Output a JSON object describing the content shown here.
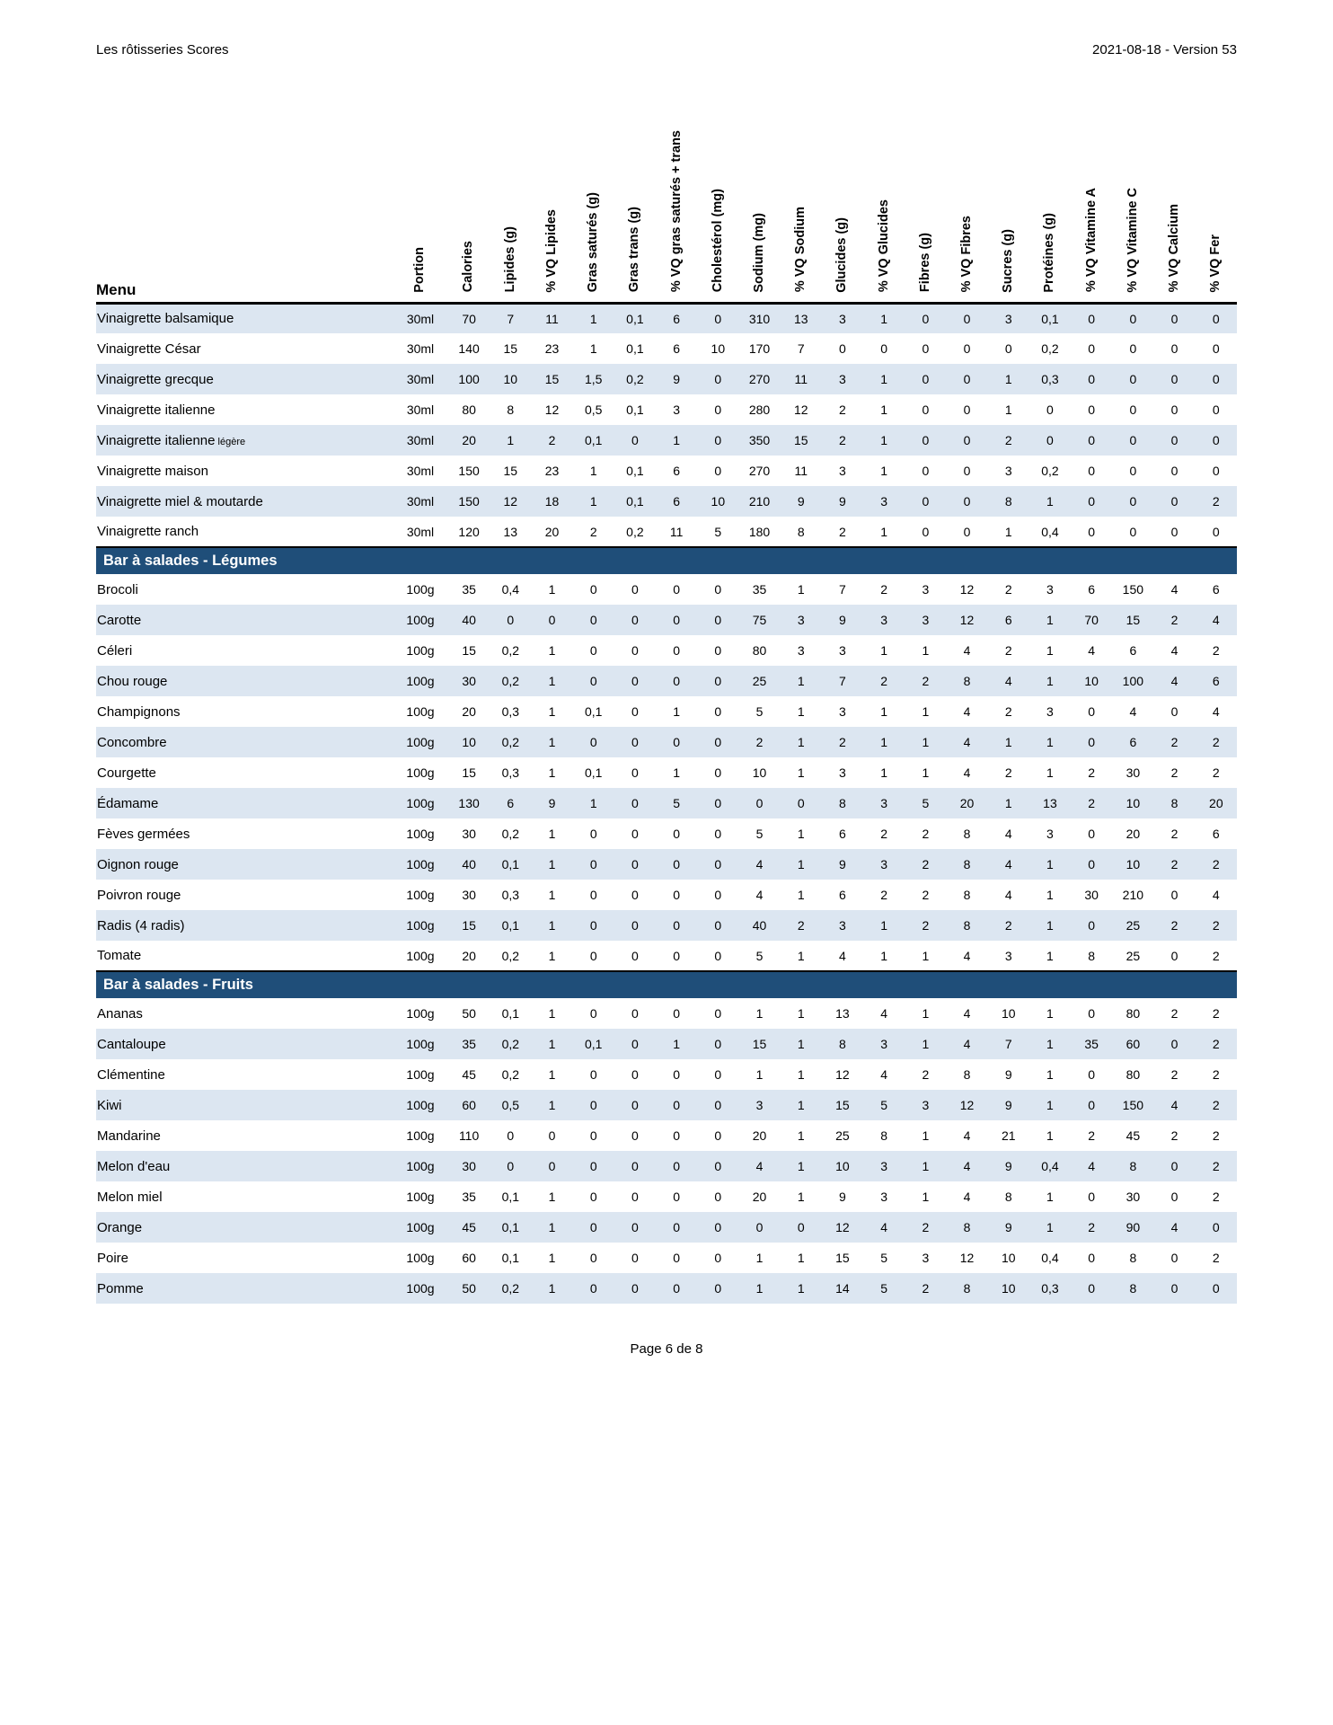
{
  "page_header": {
    "left": "Les rôtisseries Scores",
    "right": "2021-08-18 - Version 53"
  },
  "footer": {
    "text": "Page 6 de 8"
  },
  "colors": {
    "shaded_row": "#dce6f1",
    "section_band": "#1f4e79",
    "header_rule": "#000000"
  },
  "table": {
    "menu_header": "Menu",
    "columns": [
      "Portion",
      "Calories",
      "Lipides (g)",
      "% VQ Lipides",
      "Gras saturés (g)",
      "Gras trans (g)",
      "% VQ gras saturés + trans",
      "Cholestérol (mg)",
      "Sodium (mg)",
      "% VQ Sodium",
      "Glucides (g)",
      "% VQ Glucides",
      "Fibres (g)",
      "% VQ Fibres",
      "Sucres (g)",
      "Protéines (g)",
      "% VQ Vitamine A",
      "% VQ Vitamine C",
      "% VQ Calcium",
      "% VQ Fer"
    ],
    "rows": [
      {
        "type": "item",
        "name": "Vinaigrette balsamique",
        "values": [
          "30ml",
          "70",
          "7",
          "11",
          "1",
          "0,1",
          "6",
          "0",
          "310",
          "13",
          "3",
          "1",
          "0",
          "0",
          "3",
          "0,1",
          "0",
          "0",
          "0",
          "0"
        ]
      },
      {
        "type": "item",
        "name": "Vinaigrette César",
        "values": [
          "30ml",
          "140",
          "15",
          "23",
          "1",
          "0,1",
          "6",
          "10",
          "170",
          "7",
          "0",
          "0",
          "0",
          "0",
          "0",
          "0,2",
          "0",
          "0",
          "0",
          "0"
        ]
      },
      {
        "type": "item",
        "name": "Vinaigrette grecque",
        "values": [
          "30ml",
          "100",
          "10",
          "15",
          "1,5",
          "0,2",
          "9",
          "0",
          "270",
          "11",
          "3",
          "1",
          "0",
          "0",
          "1",
          "0,3",
          "0",
          "0",
          "0",
          "0"
        ]
      },
      {
        "type": "item",
        "name": "Vinaigrette italienne",
        "values": [
          "30ml",
          "80",
          "8",
          "12",
          "0,5",
          "0,1",
          "3",
          "0",
          "280",
          "12",
          "2",
          "1",
          "0",
          "0",
          "1",
          "0",
          "0",
          "0",
          "0",
          "0"
        ]
      },
      {
        "type": "item",
        "name": "Vinaigrette italienne",
        "note": "légère",
        "values": [
          "30ml",
          "20",
          "1",
          "2",
          "0,1",
          "0",
          "1",
          "0",
          "350",
          "15",
          "2",
          "1",
          "0",
          "0",
          "2",
          "0",
          "0",
          "0",
          "0",
          "0"
        ]
      },
      {
        "type": "item",
        "name": "Vinaigrette maison",
        "values": [
          "30ml",
          "150",
          "15",
          "23",
          "1",
          "0,1",
          "6",
          "0",
          "270",
          "11",
          "3",
          "1",
          "0",
          "0",
          "3",
          "0,2",
          "0",
          "0",
          "0",
          "0"
        ]
      },
      {
        "type": "item",
        "name": "Vinaigrette miel & moutarde",
        "values": [
          "30ml",
          "150",
          "12",
          "18",
          "1",
          "0,1",
          "6",
          "10",
          "210",
          "9",
          "9",
          "3",
          "0",
          "0",
          "8",
          "1",
          "0",
          "0",
          "0",
          "2"
        ]
      },
      {
        "type": "item",
        "name": "Vinaigrette ranch",
        "values": [
          "30ml",
          "120",
          "13",
          "20",
          "2",
          "0,2",
          "11",
          "5",
          "180",
          "8",
          "2",
          "1",
          "0",
          "0",
          "1",
          "0,4",
          "0",
          "0",
          "0",
          "0"
        ]
      },
      {
        "type": "section",
        "label": "Bar à salades - Légumes"
      },
      {
        "type": "item",
        "name": "Brocoli",
        "values": [
          "100g",
          "35",
          "0,4",
          "1",
          "0",
          "0",
          "0",
          "0",
          "35",
          "1",
          "7",
          "2",
          "3",
          "12",
          "2",
          "3",
          "6",
          "150",
          "4",
          "6"
        ]
      },
      {
        "type": "item",
        "name": "Carotte",
        "values": [
          "100g",
          "40",
          "0",
          "0",
          "0",
          "0",
          "0",
          "0",
          "75",
          "3",
          "9",
          "3",
          "3",
          "12",
          "6",
          "1",
          "70",
          "15",
          "2",
          "4"
        ]
      },
      {
        "type": "item",
        "name": "Céleri",
        "values": [
          "100g",
          "15",
          "0,2",
          "1",
          "0",
          "0",
          "0",
          "0",
          "80",
          "3",
          "3",
          "1",
          "1",
          "4",
          "2",
          "1",
          "4",
          "6",
          "4",
          "2"
        ]
      },
      {
        "type": "item",
        "name": "Chou rouge",
        "values": [
          "100g",
          "30",
          "0,2",
          "1",
          "0",
          "0",
          "0",
          "0",
          "25",
          "1",
          "7",
          "2",
          "2",
          "8",
          "4",
          "1",
          "10",
          "100",
          "4",
          "6"
        ]
      },
      {
        "type": "item",
        "name": "Champignons",
        "values": [
          "100g",
          "20",
          "0,3",
          "1",
          "0,1",
          "0",
          "1",
          "0",
          "5",
          "1",
          "3",
          "1",
          "1",
          "4",
          "2",
          "3",
          "0",
          "4",
          "0",
          "4"
        ]
      },
      {
        "type": "item",
        "name": "Concombre",
        "values": [
          "100g",
          "10",
          "0,2",
          "1",
          "0",
          "0",
          "0",
          "0",
          "2",
          "1",
          "2",
          "1",
          "1",
          "4",
          "1",
          "1",
          "0",
          "6",
          "2",
          "2"
        ]
      },
      {
        "type": "item",
        "name": "Courgette",
        "values": [
          "100g",
          "15",
          "0,3",
          "1",
          "0,1",
          "0",
          "1",
          "0",
          "10",
          "1",
          "3",
          "1",
          "1",
          "4",
          "2",
          "1",
          "2",
          "30",
          "2",
          "2"
        ]
      },
      {
        "type": "item",
        "name": "Édamame",
        "values": [
          "100g",
          "130",
          "6",
          "9",
          "1",
          "0",
          "5",
          "0",
          "0",
          "0",
          "8",
          "3",
          "5",
          "20",
          "1",
          "13",
          "2",
          "10",
          "8",
          "20"
        ]
      },
      {
        "type": "item",
        "name": "Fèves germées",
        "values": [
          "100g",
          "30",
          "0,2",
          "1",
          "0",
          "0",
          "0",
          "0",
          "5",
          "1",
          "6",
          "2",
          "2",
          "8",
          "4",
          "3",
          "0",
          "20",
          "2",
          "6"
        ]
      },
      {
        "type": "item",
        "name": "Oignon rouge",
        "values": [
          "100g",
          "40",
          "0,1",
          "1",
          "0",
          "0",
          "0",
          "0",
          "4",
          "1",
          "9",
          "3",
          "2",
          "8",
          "4",
          "1",
          "0",
          "10",
          "2",
          "2"
        ]
      },
      {
        "type": "item",
        "name": "Poivron rouge",
        "values": [
          "100g",
          "30",
          "0,3",
          "1",
          "0",
          "0",
          "0",
          "0",
          "4",
          "1",
          "6",
          "2",
          "2",
          "8",
          "4",
          "1",
          "30",
          "210",
          "0",
          "4"
        ]
      },
      {
        "type": "item",
        "name": "Radis (4 radis)",
        "values": [
          "100g",
          "15",
          "0,1",
          "1",
          "0",
          "0",
          "0",
          "0",
          "40",
          "2",
          "3",
          "1",
          "2",
          "8",
          "2",
          "1",
          "0",
          "25",
          "2",
          "2"
        ]
      },
      {
        "type": "item",
        "name": "Tomate",
        "values": [
          "100g",
          "20",
          "0,2",
          "1",
          "0",
          "0",
          "0",
          "0",
          "5",
          "1",
          "4",
          "1",
          "1",
          "4",
          "3",
          "1",
          "8",
          "25",
          "0",
          "2"
        ]
      },
      {
        "type": "section",
        "label": "Bar à salades - Fruits"
      },
      {
        "type": "item",
        "name": "Ananas",
        "values": [
          "100g",
          "50",
          "0,1",
          "1",
          "0",
          "0",
          "0",
          "0",
          "1",
          "1",
          "13",
          "4",
          "1",
          "4",
          "10",
          "1",
          "0",
          "80",
          "2",
          "2"
        ]
      },
      {
        "type": "item",
        "name": "Cantaloupe",
        "values": [
          "100g",
          "35",
          "0,2",
          "1",
          "0,1",
          "0",
          "1",
          "0",
          "15",
          "1",
          "8",
          "3",
          "1",
          "4",
          "7",
          "1",
          "35",
          "60",
          "0",
          "2"
        ]
      },
      {
        "type": "item",
        "name": "Clémentine",
        "values": [
          "100g",
          "45",
          "0,2",
          "1",
          "0",
          "0",
          "0",
          "0",
          "1",
          "1",
          "12",
          "4",
          "2",
          "8",
          "9",
          "1",
          "0",
          "80",
          "2",
          "2"
        ]
      },
      {
        "type": "item",
        "name": "Kiwi",
        "values": [
          "100g",
          "60",
          "0,5",
          "1",
          "0",
          "0",
          "0",
          "0",
          "3",
          "1",
          "15",
          "5",
          "3",
          "12",
          "9",
          "1",
          "0",
          "150",
          "4",
          "2"
        ]
      },
      {
        "type": "item",
        "name": "Mandarine",
        "values": [
          "100g",
          "110",
          "0",
          "0",
          "0",
          "0",
          "0",
          "0",
          "20",
          "1",
          "25",
          "8",
          "1",
          "4",
          "21",
          "1",
          "2",
          "45",
          "2",
          "2"
        ]
      },
      {
        "type": "item",
        "name": "Melon d'eau",
        "values": [
          "100g",
          "30",
          "0",
          "0",
          "0",
          "0",
          "0",
          "0",
          "4",
          "1",
          "10",
          "3",
          "1",
          "4",
          "9",
          "0,4",
          "4",
          "8",
          "0",
          "2"
        ]
      },
      {
        "type": "item",
        "name": "Melon miel",
        "values": [
          "100g",
          "35",
          "0,1",
          "1",
          "0",
          "0",
          "0",
          "0",
          "20",
          "1",
          "9",
          "3",
          "1",
          "4",
          "8",
          "1",
          "0",
          "30",
          "0",
          "2"
        ]
      },
      {
        "type": "item",
        "name": "Orange",
        "values": [
          "100g",
          "45",
          "0,1",
          "1",
          "0",
          "0",
          "0",
          "0",
          "0",
          "0",
          "12",
          "4",
          "2",
          "8",
          "9",
          "1",
          "2",
          "90",
          "4",
          "0"
        ]
      },
      {
        "type": "item",
        "name": "Poire",
        "values": [
          "100g",
          "60",
          "0,1",
          "1",
          "0",
          "0",
          "0",
          "0",
          "1",
          "1",
          "15",
          "5",
          "3",
          "12",
          "10",
          "0,4",
          "0",
          "8",
          "0",
          "2"
        ]
      },
      {
        "type": "item",
        "name": "Pomme",
        "values": [
          "100g",
          "50",
          "0,2",
          "1",
          "0",
          "0",
          "0",
          "0",
          "1",
          "1",
          "14",
          "5",
          "2",
          "8",
          "10",
          "0,3",
          "0",
          "8",
          "0",
          "0"
        ]
      }
    ]
  }
}
